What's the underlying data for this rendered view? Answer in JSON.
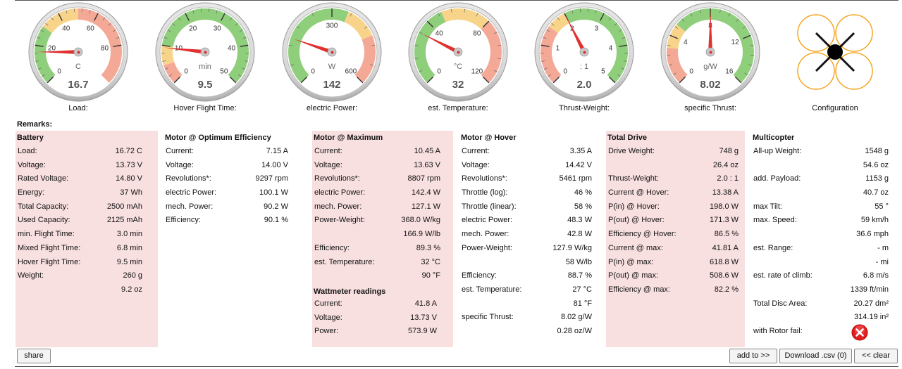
{
  "gauges": [
    {
      "id": "load",
      "label": "Load:",
      "unit": "C",
      "value": "16.7",
      "min": 0,
      "max": 100,
      "needle": 16.7,
      "ticks": [
        {
          "v": 0,
          "t": "0"
        },
        {
          "v": 20,
          "t": "20"
        },
        {
          "v": 40,
          "t": "40"
        },
        {
          "v": 60,
          "t": "60"
        },
        {
          "v": 80,
          "t": "80"
        }
      ],
      "bands": [
        {
          "from": 0,
          "to": 30,
          "color": "#8fcf7b"
        },
        {
          "from": 30,
          "to": 50,
          "color": "#f7d48a"
        },
        {
          "from": 50,
          "to": 100,
          "color": "#f4a996"
        }
      ]
    },
    {
      "id": "hover-time",
      "label": "Hover Flight Time:",
      "unit": "min",
      "value": "9.5",
      "min": 0,
      "max": 50,
      "needle": 9.5,
      "ticks": [
        {
          "v": 0,
          "t": "0"
        },
        {
          "v": 10,
          "t": "10"
        },
        {
          "v": 20,
          "t": "20"
        },
        {
          "v": 30,
          "t": "30"
        },
        {
          "v": 40,
          "t": "40"
        },
        {
          "v": 50,
          "t": "50"
        }
      ],
      "bands": [
        {
          "from": 0,
          "to": 5,
          "color": "#f4a996"
        },
        {
          "from": 5,
          "to": 10,
          "color": "#f7d48a"
        },
        {
          "from": 10,
          "to": 50,
          "color": "#8fcf7b"
        }
      ]
    },
    {
      "id": "power",
      "label": "electric Power:",
      "unit": "W",
      "value": "142",
      "min": 0,
      "max": 600,
      "needle": 142,
      "ticks": [
        {
          "v": 0,
          "t": "0"
        },
        {
          "v": 300,
          "t": "300"
        },
        {
          "v": 600,
          "t": "600"
        }
      ],
      "bands": [
        {
          "from": 0,
          "to": 350,
          "color": "#8fcf7b"
        },
        {
          "from": 350,
          "to": 450,
          "color": "#f7d48a"
        },
        {
          "from": 450,
          "to": 600,
          "color": "#f4a996"
        }
      ]
    },
    {
      "id": "temperature",
      "label": "est. Temperature:",
      "unit": "°C",
      "value": "32",
      "min": 0,
      "max": 120,
      "needle": 32,
      "ticks": [
        {
          "v": 0,
          "t": "0"
        },
        {
          "v": 40,
          "t": "40"
        },
        {
          "v": 80,
          "t": "80"
        },
        {
          "v": 120,
          "t": "120"
        }
      ],
      "bands": [
        {
          "from": 0,
          "to": 50,
          "color": "#8fcf7b"
        },
        {
          "from": 50,
          "to": 80,
          "color": "#f7d48a"
        },
        {
          "from": 80,
          "to": 120,
          "color": "#f4a996"
        }
      ]
    },
    {
      "id": "thrust-weight",
      "label": "Thrust-Weight:",
      "unit": ": 1",
      "value": "2.0",
      "min": 0,
      "max": 5,
      "needle": 2.0,
      "ticks": [
        {
          "v": 0,
          "t": "0"
        },
        {
          "v": 1,
          "t": "1"
        },
        {
          "v": 2,
          "t": "2"
        },
        {
          "v": 3,
          "t": "3"
        },
        {
          "v": 4,
          "t": "4"
        },
        {
          "v": 5,
          "t": "5"
        }
      ],
      "bands": [
        {
          "from": 0,
          "to": 1.5,
          "color": "#f4a996"
        },
        {
          "from": 1.5,
          "to": 2,
          "color": "#f7d48a"
        },
        {
          "from": 2,
          "to": 5,
          "color": "#8fcf7b"
        }
      ]
    },
    {
      "id": "specific-thrust",
      "label": "specific Thrust:",
      "unit": "g/W",
      "value": "8.02",
      "min": 0,
      "max": 16,
      "needle": 8.02,
      "ticks": [
        {
          "v": 0,
          "t": "0"
        },
        {
          "v": 4,
          "t": "4"
        },
        {
          "v": 8,
          "t": "8"
        },
        {
          "v": 12,
          "t": "12"
        },
        {
          "v": 16,
          "t": "16"
        }
      ],
      "bands": [
        {
          "from": 0,
          "to": 3,
          "color": "#f4a996"
        },
        {
          "from": 3,
          "to": 5,
          "color": "#f7d48a"
        },
        {
          "from": 5,
          "to": 16,
          "color": "#8fcf7b"
        }
      ]
    }
  ],
  "configuration": {
    "label": "Configuration",
    "rotor_color": "#f5a623"
  },
  "remarks": "Remarks:",
  "columns": [
    {
      "id": "battery",
      "title": "Battery",
      "pink": true,
      "rows": [
        {
          "l": "Load:",
          "v": "16.72 C"
        },
        {
          "l": "Voltage:",
          "v": "13.73 V"
        },
        {
          "l": "Rated Voltage:",
          "v": "14.80 V"
        },
        {
          "l": "Energy:",
          "v": "37 Wh"
        },
        {
          "l": "Total Capacity:",
          "v": "2500 mAh"
        },
        {
          "l": "Used Capacity:",
          "v": "2125 mAh"
        },
        {
          "l": "min. Flight Time:",
          "v": "3.0 min"
        },
        {
          "l": "Mixed Flight Time:",
          "v": "6.8 min"
        },
        {
          "l": "Hover Flight Time:",
          "v": "9.5 min"
        },
        {
          "l": "Weight:",
          "v": "260 g"
        },
        {
          "l": "",
          "v": "9.2 oz"
        }
      ]
    },
    {
      "id": "motor-opt",
      "title": "Motor @ Optimum Efficiency",
      "pink": false,
      "rows": [
        {
          "l": "Current:",
          "v": "7.15 A"
        },
        {
          "l": "Voltage:",
          "v": "14.00 V"
        },
        {
          "l": "Revolutions*:",
          "v": "9297 rpm"
        },
        {
          "l": "electric Power:",
          "v": "100.1 W"
        },
        {
          "l": "mech. Power:",
          "v": "90.2 W"
        },
        {
          "l": "Efficiency:",
          "v": "90.1 %"
        }
      ]
    },
    {
      "id": "motor-max",
      "title": "Motor @ Maximum",
      "pink": true,
      "rows": [
        {
          "l": "Current:",
          "v": "10.45 A"
        },
        {
          "l": "Voltage:",
          "v": "13.63 V"
        },
        {
          "l": "Revolutions*:",
          "v": "8807 rpm"
        },
        {
          "l": "electric Power:",
          "v": "142.4 W"
        },
        {
          "l": "mech. Power:",
          "v": "127.1 W"
        },
        {
          "l": "Power-Weight:",
          "v": "368.0 W/kg"
        },
        {
          "l": "",
          "v": "166.9 W/lb"
        },
        {
          "l": "Efficiency:",
          "v": "89.3 %"
        },
        {
          "l": "est. Temperature:",
          "v": "32 °C"
        },
        {
          "l": "",
          "v": "90 °F"
        }
      ],
      "sub_title": "Wattmeter readings",
      "sub_rows": [
        {
          "l": "Current:",
          "v": "41.8 A"
        },
        {
          "l": "Voltage:",
          "v": "13.73 V"
        },
        {
          "l": "Power:",
          "v": "573.9 W"
        }
      ]
    },
    {
      "id": "motor-hover",
      "title": "Motor @ Hover",
      "pink": false,
      "rows": [
        {
          "l": "Current:",
          "v": "3.35 A"
        },
        {
          "l": "Voltage:",
          "v": "14.42 V"
        },
        {
          "l": "Revolutions*:",
          "v": "5461 rpm"
        },
        {
          "l": "Throttle (log):",
          "v": "46 %"
        },
        {
          "l": "Throttle (linear):",
          "v": "58 %"
        },
        {
          "l": "electric Power:",
          "v": "48.3 W"
        },
        {
          "l": "mech. Power:",
          "v": "42.8 W"
        },
        {
          "l": "Power-Weight:",
          "v": "127.9 W/kg"
        },
        {
          "l": "",
          "v": "58 W/lb"
        },
        {
          "l": "Efficiency:",
          "v": "88.7 %"
        },
        {
          "l": "est. Temperature:",
          "v": "27 °C"
        },
        {
          "l": "",
          "v": "81 °F"
        },
        {
          "l": "specific Thrust:",
          "v": "8.02 g/W"
        },
        {
          "l": "",
          "v": "0.28 oz/W"
        }
      ]
    },
    {
      "id": "total-drive",
      "title": "Total Drive",
      "pink": true,
      "rows": [
        {
          "l": "Drive Weight:",
          "v": "748 g"
        },
        {
          "l": "",
          "v": "26.4 oz"
        },
        {
          "l": "Thrust-Weight:",
          "v": "2.0 : 1"
        },
        {
          "l": "Current @ Hover:",
          "v": "13.38 A"
        },
        {
          "l": "P(in) @ Hover:",
          "v": "198.0 W"
        },
        {
          "l": "P(out) @ Hover:",
          "v": "171.3 W"
        },
        {
          "l": "Efficiency @ Hover:",
          "v": "86.5 %"
        },
        {
          "l": "Current @ max:",
          "v": "41.81 A"
        },
        {
          "l": "P(in) @ max:",
          "v": "618.8 W"
        },
        {
          "l": "P(out) @ max:",
          "v": "508.6 W"
        },
        {
          "l": "Efficiency @ max:",
          "v": "82.2 %"
        }
      ]
    },
    {
      "id": "multicopter",
      "title": "Multicopter",
      "pink": false,
      "rows": [
        {
          "l": "All-up Weight:",
          "v": "1548 g"
        },
        {
          "l": "",
          "v": "54.6 oz"
        },
        {
          "l": "add. Payload:",
          "v": "1153 g"
        },
        {
          "l": "",
          "v": "40.7 oz"
        },
        {
          "l": "max Tilt:",
          "v": "55 °"
        },
        {
          "l": "max. Speed:",
          "v": "59 km/h"
        },
        {
          "l": "",
          "v": "36.6 mph"
        },
        {
          "l": "est. Range:",
          "v": "- m"
        },
        {
          "l": "",
          "v": "- mi"
        },
        {
          "l": "est. rate of climb:",
          "v": "6.8 m/s"
        },
        {
          "l": "",
          "v": "1339 ft/min"
        },
        {
          "l": "Total Disc Area:",
          "v": "20.27 dm²"
        },
        {
          "l": "",
          "v": "314.19 in²"
        },
        {
          "l": "with Rotor fail:",
          "v": ""
        }
      ]
    }
  ],
  "buttons": {
    "share": "share",
    "add_to": "add to >>",
    "download": "Download .csv (0)",
    "clear": "<< clear"
  },
  "colors": {
    "pink": "#f8dfe0",
    "needle": "#e03030",
    "fail": "#e02020"
  }
}
